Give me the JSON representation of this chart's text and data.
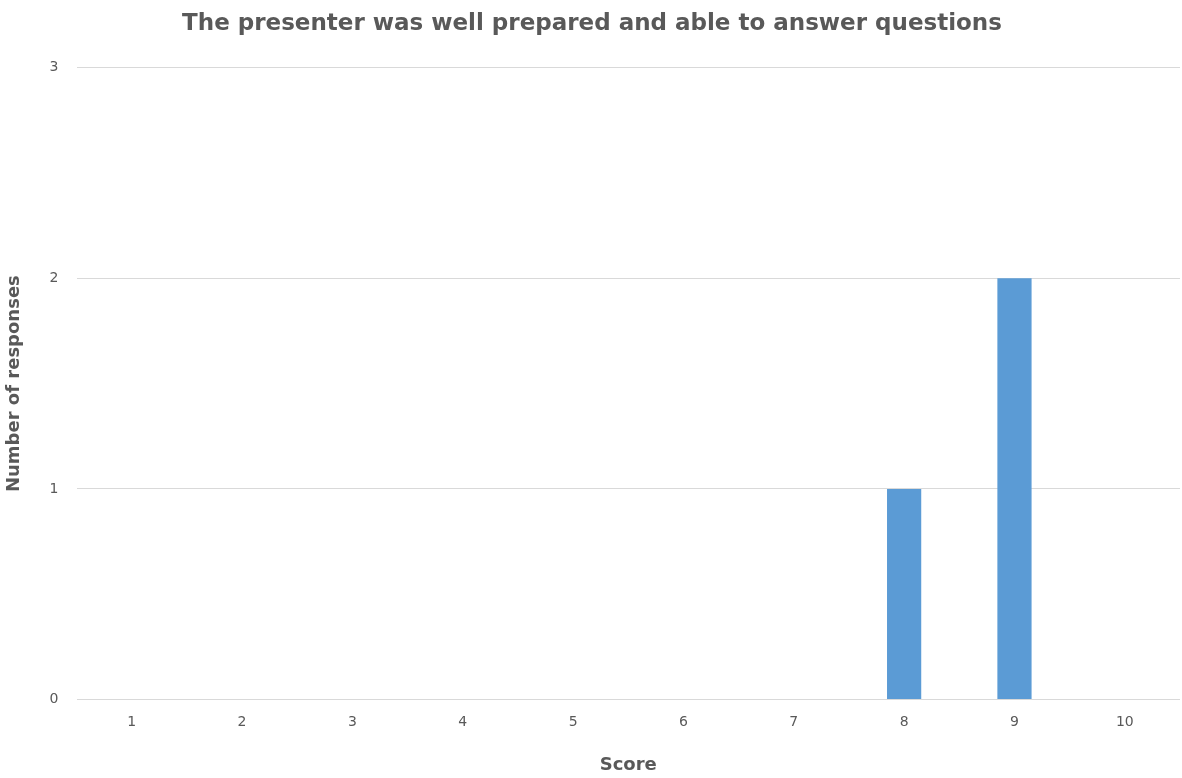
{
  "chart_data": {
    "type": "bar",
    "title": "The presenter was well prepared and able to answer questions",
    "xlabel": "Score",
    "ylabel": "Number of responses",
    "categories": [
      "1",
      "2",
      "3",
      "4",
      "5",
      "6",
      "7",
      "8",
      "9",
      "10"
    ],
    "values": [
      0,
      0,
      0,
      0,
      0,
      0,
      0,
      1,
      2,
      0
    ],
    "color": "#5b9bd5",
    "ylim": [
      0,
      3
    ],
    "yticks": [
      0,
      1,
      2,
      3
    ],
    "grid": "y"
  }
}
